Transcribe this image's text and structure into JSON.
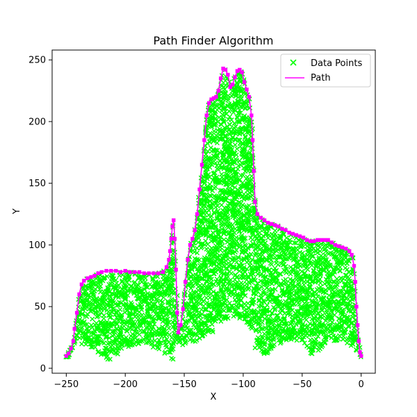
{
  "chart_data": {
    "type": "scatter",
    "title": "Path Finder Algorithm",
    "xlabel": "X",
    "ylabel": "Y",
    "xlim": [
      -262,
      12
    ],
    "ylim": [
      -4,
      258
    ],
    "xticks": [
      -250,
      -200,
      -150,
      -100,
      -50,
      0
    ],
    "yticks": [
      0,
      50,
      100,
      150,
      200,
      250
    ],
    "xtick_labels": [
      "−250",
      "−200",
      "−150",
      "−100",
      "−50",
      "0"
    ],
    "ytick_labels": [
      "0",
      "50",
      "100",
      "150",
      "200",
      "250"
    ],
    "grid": false,
    "legend": {
      "position": "top-right",
      "entries": [
        "Data Points",
        "Path"
      ]
    },
    "colors": {
      "points": "#00ff00",
      "path": "#ff00ff",
      "path_marker_edge": "#ff00ff"
    },
    "series": [
      {
        "name": "Data Points",
        "kind": "scatter",
        "marker": "x",
        "description_region": "dense filled region beneath the path outline",
        "regions": [
          {
            "x_range": [
              -250,
              -160
            ],
            "y_low": [
              6,
              30
            ],
            "y_high": [
              80,
              80
            ]
          },
          {
            "x_range": [
              -160,
              -150
            ],
            "y_low": [
              18,
              30
            ],
            "y_high": [
              120,
              30
            ]
          },
          {
            "x_range": [
              -150,
              -90
            ],
            "y_low": [
              20,
              40
            ],
            "y_high": [
              245,
              120
            ]
          },
          {
            "x_range": [
              -90,
              0
            ],
            "y_low": [
              10,
              10
            ],
            "y_high": [
              118,
              10
            ]
          }
        ]
      },
      {
        "name": "Path",
        "kind": "line",
        "points": [
          [
            -250,
            10
          ],
          [
            -248,
            12
          ],
          [
            -246,
            16
          ],
          [
            -244,
            22
          ],
          [
            -243,
            32
          ],
          [
            -241,
            45
          ],
          [
            -239,
            60
          ],
          [
            -237,
            68
          ],
          [
            -235,
            71
          ],
          [
            -232,
            73
          ],
          [
            -229,
            74
          ],
          [
            -226,
            75
          ],
          [
            -223,
            77
          ],
          [
            -220,
            78
          ],
          [
            -216,
            79
          ],
          [
            -212,
            79
          ],
          [
            -208,
            79
          ],
          [
            -204,
            78
          ],
          [
            -200,
            79
          ],
          [
            -196,
            78
          ],
          [
            -192,
            78
          ],
          [
            -188,
            78
          ],
          [
            -184,
            77
          ],
          [
            -180,
            77
          ],
          [
            -176,
            77
          ],
          [
            -172,
            77
          ],
          [
            -168,
            78
          ],
          [
            -165,
            82
          ],
          [
            -163,
            88
          ],
          [
            -162,
            95
          ],
          [
            -161,
            105
          ],
          [
            -160,
            115
          ],
          [
            -159,
            120
          ],
          [
            -158,
            105
          ],
          [
            -157,
            80
          ],
          [
            -156,
            45
          ],
          [
            -155,
            29
          ],
          [
            -153,
            35
          ],
          [
            -151,
            48
          ],
          [
            -149,
            70
          ],
          [
            -147,
            88
          ],
          [
            -145,
            100
          ],
          [
            -143,
            105
          ],
          [
            -141,
            112
          ],
          [
            -139,
            125
          ],
          [
            -137,
            145
          ],
          [
            -135,
            165
          ],
          [
            -133,
            185
          ],
          [
            -131,
            205
          ],
          [
            -129,
            215
          ],
          [
            -127,
            218
          ],
          [
            -125,
            219
          ],
          [
            -123,
            220
          ],
          [
            -121,
            225
          ],
          [
            -119,
            235
          ],
          [
            -117,
            243
          ],
          [
            -115,
            242
          ],
          [
            -113,
            238
          ],
          [
            -111,
            228
          ],
          [
            -109,
            230
          ],
          [
            -107,
            236
          ],
          [
            -105,
            241
          ],
          [
            -103,
            242
          ],
          [
            -101,
            240
          ],
          [
            -99,
            232
          ],
          [
            -97,
            226
          ],
          [
            -95,
            220
          ],
          [
            -93,
            205
          ],
          [
            -92,
            185
          ],
          [
            -91,
            160
          ],
          [
            -90,
            135
          ],
          [
            -88,
            125
          ],
          [
            -85,
            122
          ],
          [
            -82,
            120
          ],
          [
            -79,
            118
          ],
          [
            -76,
            117
          ],
          [
            -73,
            116
          ],
          [
            -70,
            115
          ],
          [
            -67,
            113
          ],
          [
            -64,
            112
          ],
          [
            -61,
            110
          ],
          [
            -58,
            109
          ],
          [
            -55,
            108
          ],
          [
            -52,
            107
          ],
          [
            -49,
            106
          ],
          [
            -46,
            104
          ],
          [
            -43,
            103
          ],
          [
            -40,
            103
          ],
          [
            -37,
            104
          ],
          [
            -34,
            104
          ],
          [
            -31,
            104
          ],
          [
            -28,
            104
          ],
          [
            -25,
            102
          ],
          [
            -22,
            100
          ],
          [
            -19,
            99
          ],
          [
            -16,
            98
          ],
          [
            -13,
            97
          ],
          [
            -10,
            95
          ],
          [
            -8,
            92
          ],
          [
            -6,
            83
          ],
          [
            -5,
            70
          ],
          [
            -4,
            50
          ],
          [
            -3,
            35
          ],
          [
            -2,
            22
          ],
          [
            -1,
            13
          ],
          [
            0,
            10
          ]
        ]
      }
    ]
  }
}
